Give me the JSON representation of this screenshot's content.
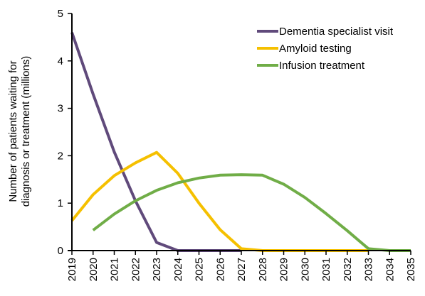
{
  "chart_data": {
    "type": "line",
    "title": "",
    "xlabel": "",
    "ylabel_lines": [
      "Number of patients waiting for",
      "diagnosis or treatment (millions)"
    ],
    "x": [
      2019,
      2020,
      2021,
      2022,
      2023,
      2024,
      2025,
      2026,
      2027,
      2028,
      2029,
      2030,
      2031,
      2032,
      2033,
      2034,
      2035
    ],
    "xlim": [
      2019,
      2035
    ],
    "ylim": [
      0,
      5
    ],
    "yticks": [
      "0",
      "1",
      "2",
      "3",
      "4",
      "5"
    ],
    "grid": false,
    "legend_position": "top-right",
    "series": [
      {
        "name": "Dementia specialist visit",
        "color": "#604a7b",
        "points": [
          [
            2019,
            4.6
          ],
          [
            2020,
            3.3
          ],
          [
            2021,
            2.08
          ],
          [
            2022,
            1.05
          ],
          [
            2023,
            0.17
          ],
          [
            2024,
            0.0
          ],
          [
            2025,
            0.0
          ],
          [
            2026,
            0.0
          ],
          [
            2027,
            0.0
          ]
        ]
      },
      {
        "name": "Amyloid testing",
        "color": "#f5c000",
        "points": [
          [
            2019,
            0.63
          ],
          [
            2020,
            1.18
          ],
          [
            2021,
            1.58
          ],
          [
            2022,
            1.85
          ],
          [
            2023,
            2.07
          ],
          [
            2024,
            1.63
          ],
          [
            2025,
            1.0
          ],
          [
            2026,
            0.44
          ],
          [
            2027,
            0.04
          ],
          [
            2028,
            0.0
          ],
          [
            2029,
            0.0
          ],
          [
            2030,
            0.0
          ],
          [
            2031,
            0.0
          ],
          [
            2032,
            0.0
          ],
          [
            2033,
            0.0
          ]
        ]
      },
      {
        "name": "Infusion treatment",
        "color": "#70ad47",
        "points": [
          [
            2020,
            0.43
          ],
          [
            2021,
            0.77
          ],
          [
            2022,
            1.05
          ],
          [
            2023,
            1.27
          ],
          [
            2024,
            1.43
          ],
          [
            2025,
            1.53
          ],
          [
            2026,
            1.59
          ],
          [
            2027,
            1.6
          ],
          [
            2028,
            1.59
          ],
          [
            2029,
            1.4
          ],
          [
            2030,
            1.12
          ],
          [
            2031,
            0.78
          ],
          [
            2032,
            0.42
          ],
          [
            2033,
            0.04
          ],
          [
            2034,
            0.0
          ],
          [
            2035,
            0.0
          ]
        ]
      }
    ]
  }
}
